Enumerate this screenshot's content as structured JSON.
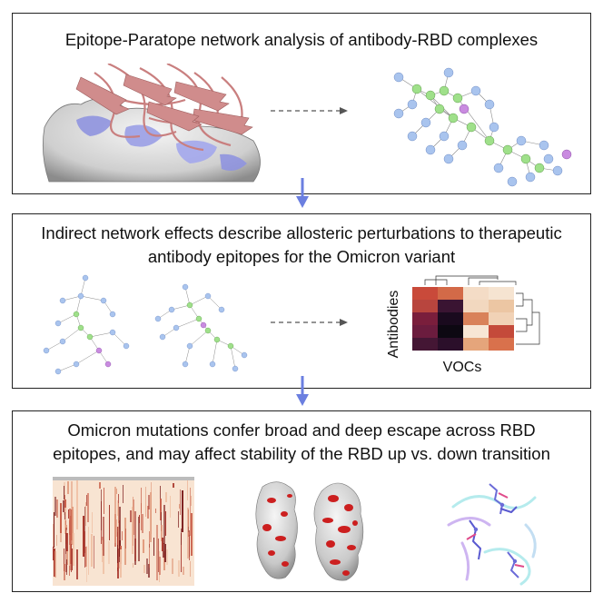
{
  "panels": [
    {
      "title": "Epitope-Paratope network analysis of antibody-RBD complexes"
    },
    {
      "title_line1": "Indirect network effects describe allosteric perturbations to therapeutic",
      "title_line2": "antibody epitopes for the Omicron variant",
      "heatmap": {
        "ylabel": "Antibodies",
        "xlabel": "VOCs"
      }
    },
    {
      "title_line1": "Omicron mutations confer broad and deep escape across RBD",
      "title_line2": "epitopes, and may affect stability of the RBD up vs. down transition"
    }
  ],
  "colors": {
    "flow_arrow": "#6b7fe0",
    "node_blue": "#a9c4ee",
    "node_green": "#9fe08a",
    "node_purple": "#c98be0",
    "surface_blue": "#9a9ee6",
    "ribbon": "#c97f7f",
    "escape_red": "#cc1f1f"
  }
}
